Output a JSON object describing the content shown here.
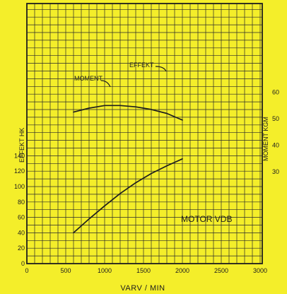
{
  "chart_data": {
    "type": "line",
    "title": "MOTOR VDB",
    "xlabel": "VARV / MIN",
    "ylabel_left": "EFFEKT HK",
    "ylabel_right": "MOMENT KGM",
    "xlim": [
      0,
      3000
    ],
    "ylim_left": [
      0,
      150
    ],
    "ylim_right": [
      0,
      70
    ],
    "x_ticks": [
      "0",
      "500",
      "1000",
      "1500",
      "2000",
      "2500",
      "3000"
    ],
    "y_left_ticks": [
      "0",
      "20",
      "40",
      "60",
      "80",
      "100",
      "120",
      "140"
    ],
    "y_right_ticks": [
      "30",
      "40",
      "50",
      "60"
    ],
    "grid": true,
    "series": [
      {
        "name": "EFFEKT",
        "axis": "left",
        "x": [
          600,
          800,
          1000,
          1200,
          1400,
          1600,
          1800,
          2000
        ],
        "y": [
          40,
          58,
          75,
          91,
          105,
          117,
          127,
          136
        ]
      },
      {
        "name": "MOMENT",
        "axis": "right",
        "x": [
          600,
          800,
          1000,
          1200,
          1400,
          1600,
          1800,
          2000
        ],
        "y": [
          52.5,
          54,
          55,
          55,
          54.5,
          53.5,
          52,
          49.5
        ]
      }
    ],
    "annotations": [
      "EFFEKT",
      "MOMENT"
    ]
  }
}
